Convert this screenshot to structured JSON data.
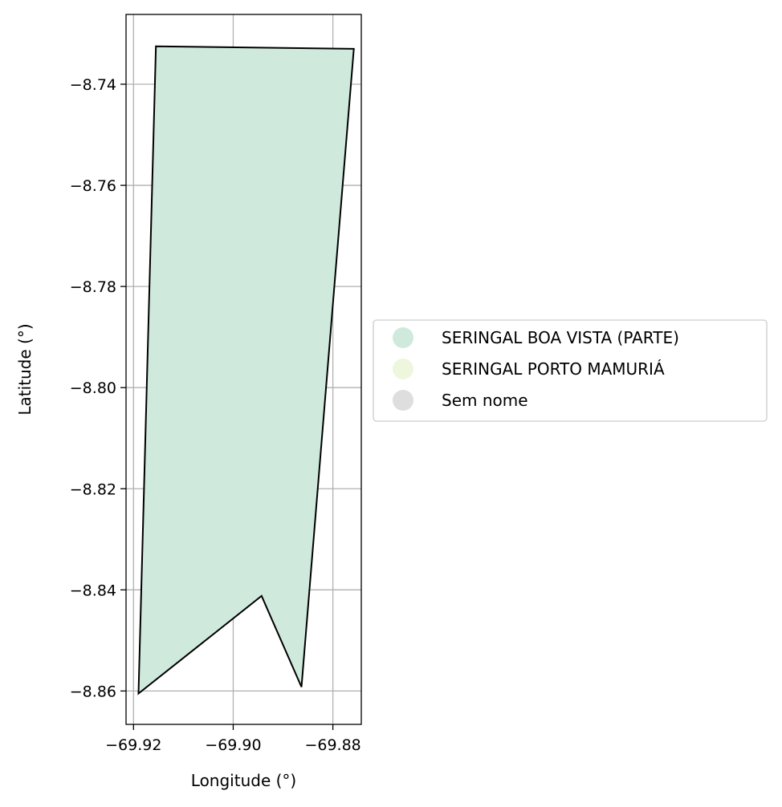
{
  "chart_data": {
    "type": "map",
    "title": "",
    "xlabel": "Longitude (°)",
    "ylabel": "Latitude (°)",
    "xlim": [
      -69.9215,
      -69.8743
    ],
    "ylim": [
      -8.8666,
      -8.7262
    ],
    "xticks": [
      -69.92,
      -69.9,
      -69.88
    ],
    "xtick_labels": [
      "−69.92",
      "−69.90",
      "−69.88"
    ],
    "yticks": [
      -8.74,
      -8.76,
      -8.78,
      -8.8,
      -8.82,
      -8.84,
      -8.86
    ],
    "ytick_labels": [
      "−8.74",
      "−8.76",
      "−8.78",
      "−8.80",
      "−8.82",
      "−8.84",
      "−8.86"
    ],
    "grid": true,
    "legend_position": "center-right outside",
    "polygons": [
      {
        "name": "SERINGAL BOA VISTA (PARTE)",
        "color": "#cfeadd",
        "edge_color": "#000000",
        "coords": [
          [
            -69.9155,
            -8.7325
          ],
          [
            -69.8758,
            -8.733
          ],
          [
            -69.8863,
            -8.8592
          ],
          [
            -69.8943,
            -8.8412
          ],
          [
            -69.919,
            -8.8605
          ]
        ]
      }
    ],
    "legend": [
      {
        "label": "SERINGAL BOA VISTA (PARTE)",
        "color": "#cfeadd"
      },
      {
        "label": "SERINGAL PORTO MAMURIÁ",
        "color": "#eef7de"
      },
      {
        "label": "Sem nome",
        "color": "#dedede"
      }
    ]
  }
}
